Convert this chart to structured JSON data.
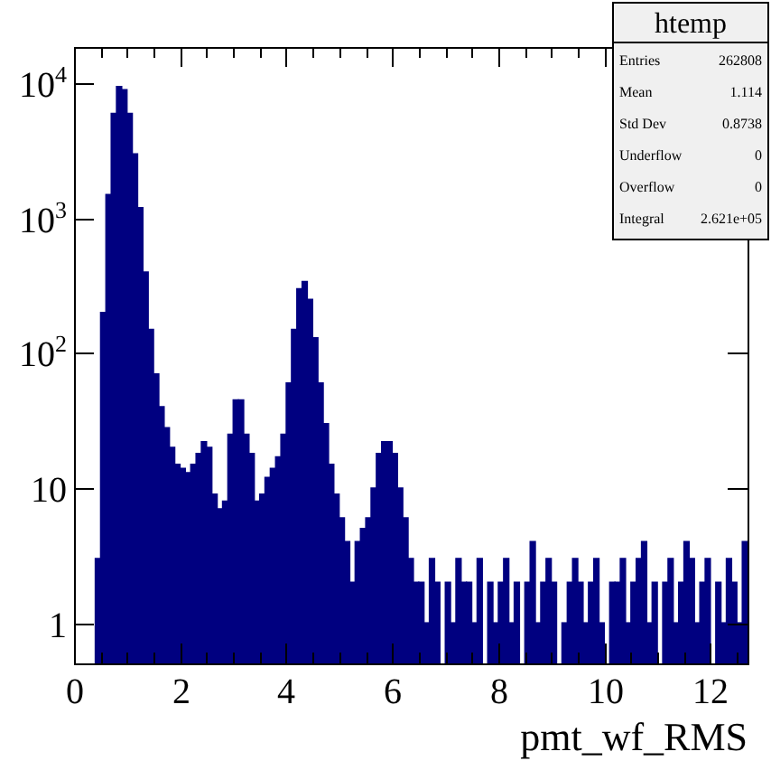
{
  "chart_data": {
    "type": "histogram",
    "title": "htemp",
    "xlabel": "pmt_wf_RMS",
    "bins": [
      0,
      0.1,
      0.2,
      0.3,
      0.4,
      0.5,
      0.6,
      0.7,
      0.8,
      0.9,
      1,
      1.1,
      1.2,
      1.3,
      1.4,
      1.5,
      1.6,
      1.7,
      1.8,
      1.9,
      2,
      2.1,
      2.2,
      2.3,
      2.4,
      2.5,
      2.6,
      2.7,
      2.8,
      2.9,
      3,
      3.1,
      3.2,
      3.3,
      3.4,
      3.5,
      3.6,
      3.7,
      3.8,
      3.9,
      4,
      4.1,
      4.2,
      4.3,
      4.4,
      4.5,
      4.6,
      4.7,
      4.8,
      4.9,
      5,
      5.1,
      5.2,
      5.3,
      5.4,
      5.5,
      5.6,
      5.7,
      5.8,
      5.9,
      6,
      6.1,
      6.2,
      6.3,
      6.4,
      6.5,
      6.6,
      6.7,
      6.8,
      6.9,
      7,
      7.1,
      7.2,
      7.3,
      7.4,
      7.5,
      7.6,
      7.7,
      7.8,
      7.9,
      8,
      8.1,
      8.2,
      8.3,
      8.4,
      8.5,
      8.6,
      8.7,
      8.8,
      8.9,
      9,
      9.1,
      9.2,
      9.3,
      9.4,
      9.5,
      9.6,
      9.7,
      9.8,
      9.9,
      10,
      10.1,
      10.2,
      10.3,
      10.4,
      10.5,
      10.6,
      10.7,
      10.8,
      10.9,
      11,
      11.1,
      11.2,
      11.3,
      11.4,
      11.5,
      11.6,
      11.7,
      11.8,
      11.9,
      12,
      12.1,
      12.2,
      12.3,
      12.4,
      12.5,
      12.6,
      12.7
    ],
    "values": [
      null,
      null,
      null,
      null,
      3,
      200,
      1500,
      6000,
      9500,
      9000,
      6000,
      3000,
      1200,
      400,
      150,
      70,
      40,
      28,
      20,
      15,
      14,
      13,
      15,
      18,
      22,
      20,
      9,
      7,
      8,
      25,
      45,
      45,
      25,
      18,
      8,
      9,
      12,
      14,
      17,
      25,
      60,
      150,
      300,
      340,
      250,
      130,
      60,
      30,
      15,
      9,
      6,
      4,
      2,
      4,
      5,
      6,
      10,
      18,
      22,
      22,
      18,
      10,
      6,
      3,
      2,
      2,
      1,
      3,
      2,
      null,
      2,
      1,
      3,
      2,
      2,
      1,
      3,
      null,
      2,
      1,
      2,
      3,
      1,
      2,
      null,
      2,
      4,
      1,
      2,
      3,
      2,
      null,
      1,
      2,
      3,
      2,
      1,
      2,
      3,
      1,
      null,
      2,
      2,
      3,
      1,
      2,
      3,
      4,
      1,
      2,
      null,
      2,
      3,
      1,
      2,
      4,
      3,
      1,
      2,
      3,
      null,
      2,
      1,
      3,
      2,
      1,
      4
    ],
    "color": "#000080",
    "log": "y",
    "grid": false,
    "legend": false,
    "xlim": [
      0,
      12.7
    ],
    "xticks": [
      0,
      {
        "value": 0.5,
        "label": null
      },
      {
        "value": 1,
        "label": null
      },
      {
        "value": 1.5,
        "label": null
      },
      2,
      {
        "value": 2.5,
        "label": null
      },
      {
        "value": 3,
        "label": null
      },
      {
        "value": 3.5,
        "label": null
      },
      4,
      {
        "value": 4.5,
        "label": null
      },
      {
        "value": 5,
        "label": null
      },
      {
        "value": 5.5,
        "label": null
      },
      6,
      {
        "value": 6.5,
        "label": null
      },
      {
        "value": 7,
        "label": null
      },
      {
        "value": 7.5,
        "label": null
      },
      8,
      {
        "value": 8.5,
        "label": null
      },
      {
        "value": 9,
        "label": null
      },
      {
        "value": 9.5,
        "label": null
      },
      10,
      {
        "value": 10.5,
        "label": null
      },
      {
        "value": 11,
        "label": null
      },
      {
        "value": 11.5,
        "label": null
      },
      12,
      {
        "value": 12.5,
        "label": null
      }
    ],
    "ylim": [
      0.5,
      18600
    ],
    "yticks": [
      1,
      10,
      {
        "value": 100,
        "label": "10$^{2}$"
      },
      {
        "value": 1000,
        "label": "10$^{3}$"
      },
      {
        "value": 10000,
        "label": "10$^{4}$"
      }
    ],
    "annotations": [
      "Entries",
      "262808",
      "Mean",
      "1.114",
      "Std Dev",
      "0.8738",
      "Underflow",
      "0",
      "Overflow",
      "0",
      "Integral",
      "2.621e+05"
    ]
  }
}
